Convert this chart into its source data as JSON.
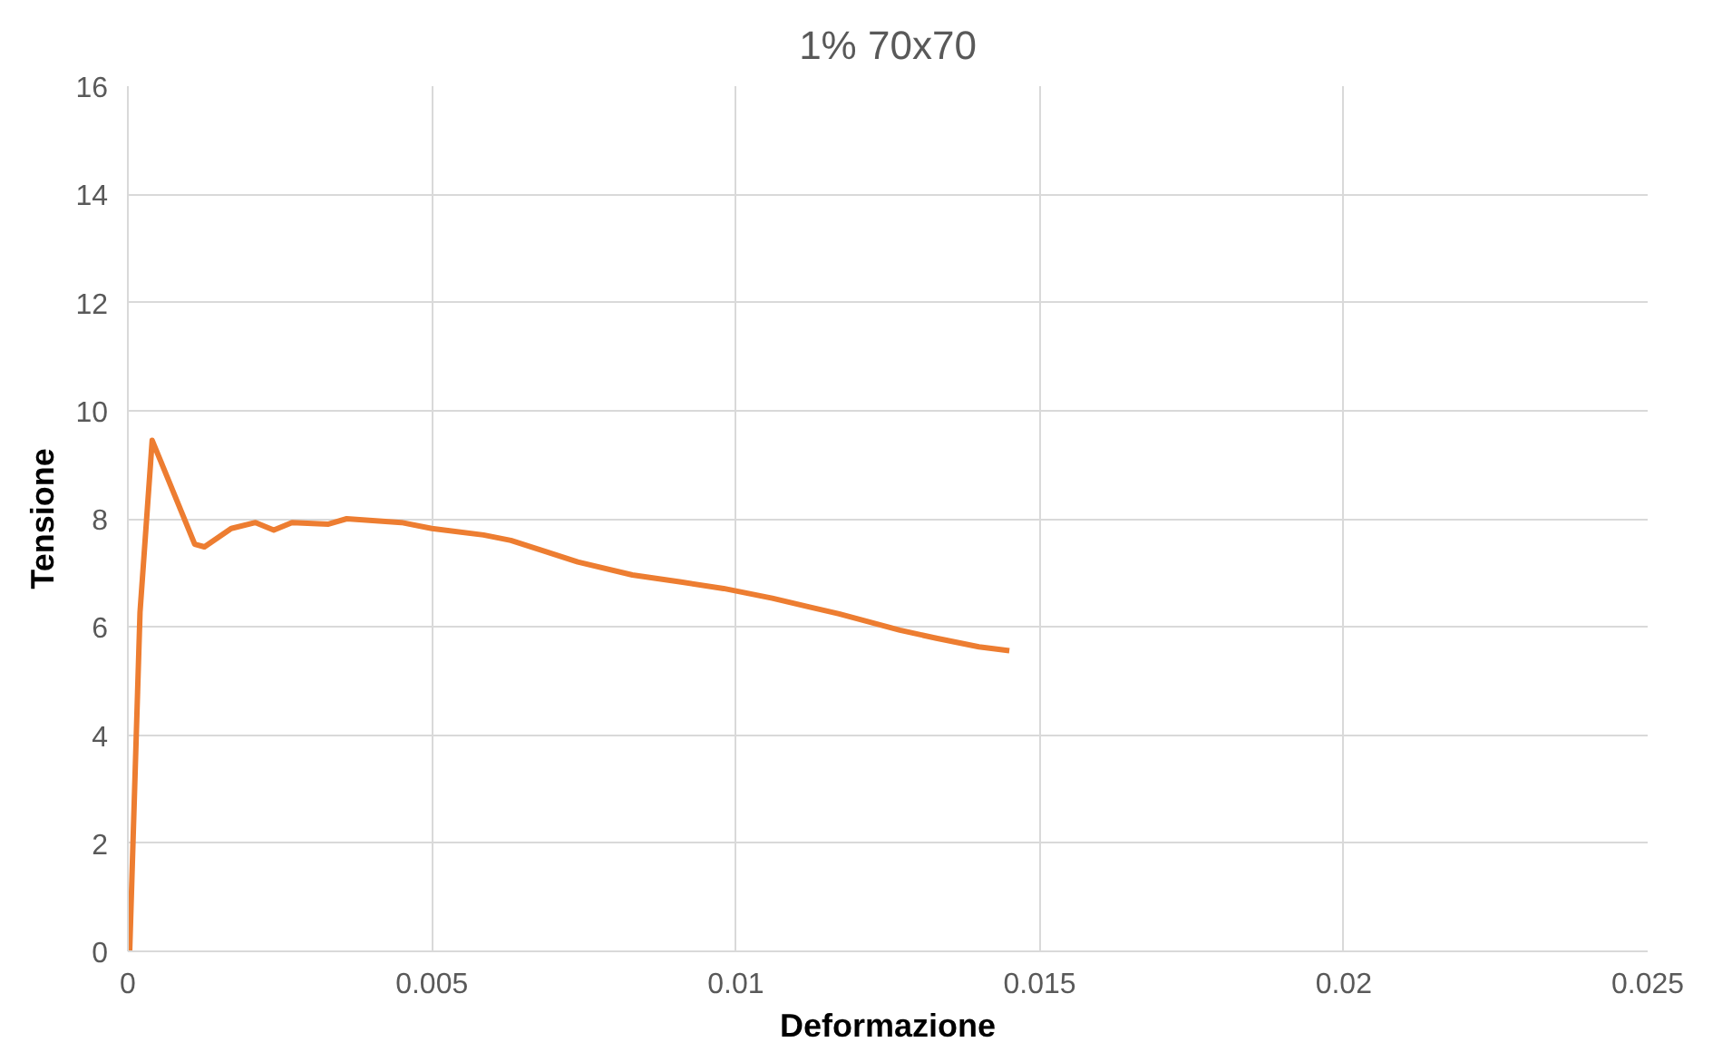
{
  "chart_data": {
    "type": "line",
    "title": "1% 70x70",
    "xlabel": "Deformazione",
    "ylabel": "Tensione",
    "x": [
      3e-05,
      0.0002,
      0.0004,
      0.0011,
      0.00126,
      0.0017,
      0.0021,
      0.0024,
      0.0027,
      0.0033,
      0.0036,
      0.0045,
      0.005,
      0.00585,
      0.0063,
      0.0068,
      0.0074,
      0.0083,
      0.0091,
      0.0098,
      0.0106,
      0.0112,
      0.0117,
      0.0127,
      0.0133,
      0.014,
      0.0145
    ],
    "series": [
      {
        "color": "#ed7d31",
        "values": [
          0,
          6.27,
          9.45,
          7.53,
          7.48,
          7.82,
          7.93,
          7.79,
          7.93,
          7.9,
          8.0,
          7.93,
          7.82,
          7.7,
          7.6,
          7.42,
          7.2,
          6.96,
          6.83,
          6.71,
          6.53,
          6.37,
          6.24,
          5.94,
          5.79,
          5.63,
          5.56
        ]
      }
    ],
    "xlim": [
      0,
      0.025
    ],
    "xticks": [
      0,
      0.005,
      0.01,
      0.015,
      0.02,
      0.025
    ],
    "ylim": [
      0,
      16
    ],
    "yticks": [
      0,
      2,
      4,
      6,
      8,
      10,
      12,
      14,
      16
    ],
    "grid": true,
    "marker": "none",
    "line_style": "solid"
  }
}
